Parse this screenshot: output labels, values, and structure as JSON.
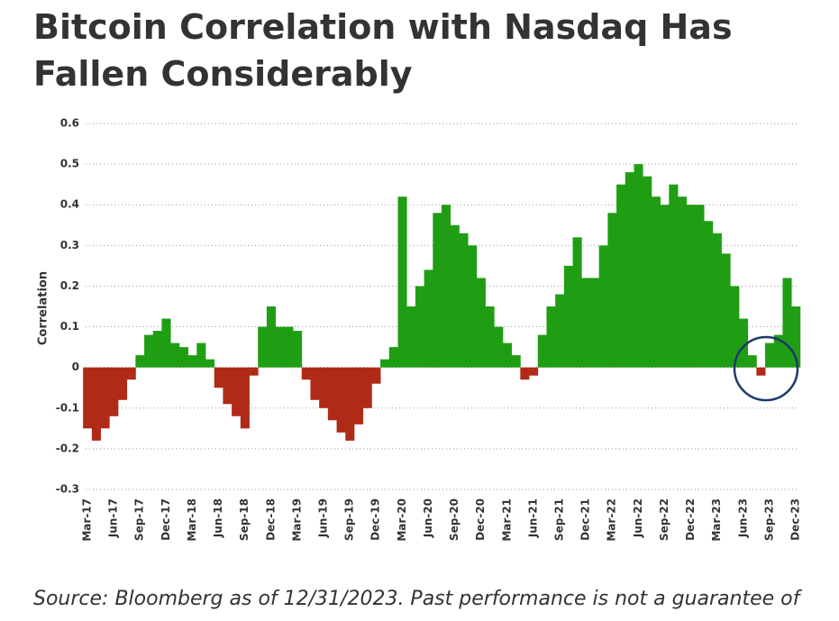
{
  "chart_data": {
    "type": "bar",
    "title": "Bitcoin Correlation with Nasdaq Has Fallen Considerably",
    "y_label": "Correlation",
    "source": "Source: Bloomberg as of 12/31/2023. Past performance is not a guarantee of",
    "positive_color": "#1f9e14",
    "negative_color": "#b02a18",
    "ylim": [
      -0.3,
      0.6
    ],
    "yticks": [
      -0.3,
      -0.2,
      -0.1,
      0,
      0.1,
      0.2,
      0.3,
      0.4,
      0.5,
      0.6
    ],
    "grid": true,
    "categories": [
      "Mar-17",
      null,
      null,
      "Jun-17",
      null,
      null,
      "Sep-17",
      null,
      null,
      "Dec-17",
      null,
      null,
      "Mar-18",
      null,
      null,
      "Jun-18",
      null,
      null,
      "Sep-18",
      null,
      null,
      "Dec-18",
      null,
      null,
      "Mar-19",
      null,
      null,
      "Jun-19",
      null,
      null,
      "Sep-19",
      null,
      null,
      "Dec-19",
      null,
      null,
      "Mar-20",
      null,
      null,
      "Jun-20",
      null,
      null,
      "Sep-20",
      null,
      null,
      "Dec-20",
      null,
      null,
      "Mar-21",
      null,
      null,
      "Jun-21",
      null,
      null,
      "Sep-21",
      null,
      null,
      "Dec-21",
      null,
      null,
      "Mar-22",
      null,
      null,
      "Jun-22",
      null,
      null,
      "Sep-22",
      null,
      null,
      "Dec-22",
      null,
      null,
      "Mar-23",
      null,
      null,
      "Jun-23",
      null,
      null,
      "Sep-23",
      null,
      null,
      "Dec-23"
    ],
    "values": [
      -0.15,
      -0.18,
      -0.15,
      -0.12,
      -0.08,
      -0.03,
      0.03,
      0.08,
      0.09,
      0.12,
      0.06,
      0.05,
      0.03,
      0.06,
      0.02,
      -0.05,
      -0.09,
      -0.12,
      -0.15,
      -0.02,
      0.1,
      0.15,
      0.1,
      0.1,
      0.09,
      -0.03,
      -0.08,
      -0.1,
      -0.13,
      -0.16,
      -0.18,
      -0.14,
      -0.1,
      -0.04,
      0.02,
      0.05,
      0.42,
      0.15,
      0.2,
      0.24,
      0.38,
      0.4,
      0.35,
      0.33,
      0.3,
      0.22,
      0.15,
      0.1,
      0.06,
      0.03,
      -0.03,
      -0.02,
      0.08,
      0.15,
      0.18,
      0.25,
      0.32,
      0.22,
      0.22,
      0.3,
      0.38,
      0.45,
      0.48,
      0.5,
      0.47,
      0.42,
      0.4,
      0.45,
      0.42,
      0.4,
      0.4,
      0.36,
      0.33,
      0.28,
      0.2,
      0.12,
      0.03,
      -0.02,
      0.06,
      0.08,
      0.22,
      0.15
    ]
  }
}
